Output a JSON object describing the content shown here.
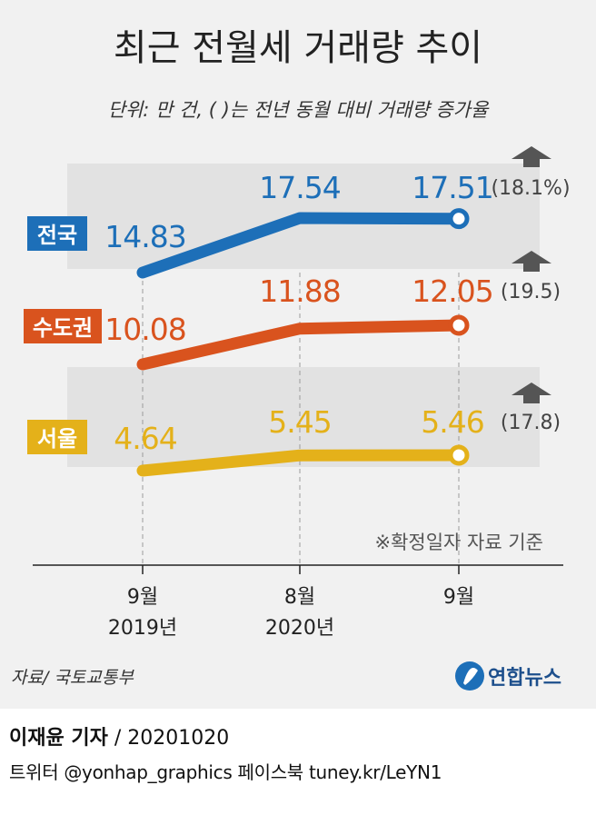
{
  "header": {
    "title": "최근 전월세 거래량 추이",
    "subtitle": "단위: 만 건, (   )는 전년 동월 대비 거래량 증가율"
  },
  "chart_data": {
    "type": "line",
    "title": "최근 전월세 거래량 추이",
    "unit": "만 건",
    "categories": [
      "9월\n2019년",
      "8월\n2020년",
      "9월"
    ],
    "series": [
      {
        "name": "전국",
        "values": [
          14.83,
          17.54,
          17.51
        ],
        "growth": "(18.1%)",
        "color": "#1d6fb8"
      },
      {
        "name": "수도권",
        "values": [
          10.08,
          11.88,
          12.05
        ],
        "growth": "(19.5)",
        "color": "#d9531e"
      },
      {
        "name": "서울",
        "values": [
          4.64,
          5.45,
          5.46
        ],
        "growth": "(17.8)",
        "color": "#e4b11a"
      }
    ],
    "value_labels": [
      [
        "14.83",
        "17.54",
        "17.51"
      ],
      [
        "10.08",
        "11.88",
        "12.05"
      ],
      [
        "4.64",
        "5.45",
        "5.46"
      ]
    ],
    "legend": "left-inline",
    "grid": "vertical-dashed"
  },
  "xaxis": {
    "month_labels": [
      "9월",
      "8월",
      "9월"
    ],
    "year_labels": [
      "2019년",
      "2020년",
      ""
    ]
  },
  "note": "※확정일자 자료 기준",
  "source": "자료/ 국토교통부",
  "logo_text": "연합뉴스",
  "credit": {
    "author": "이재윤 기자",
    "date": " / 20201020",
    "social": "트위터 @yonhap_graphics  페이스북 tuney.kr/LeYN1"
  }
}
